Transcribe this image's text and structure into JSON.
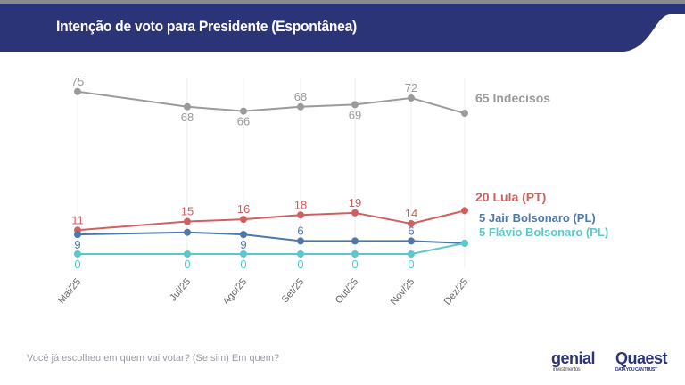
{
  "header": {
    "title": "Intenção de voto para Presidente (Espontânea)"
  },
  "footer": {
    "question": "Você já escolheu em quem vai votar? (Se sim) Em quem?",
    "logo_genial": "genial",
    "logo_genial_sub": "investimentos",
    "logo_quaest": "Quaest",
    "logo_quaest_sub": "DATA YOU CAN TRUST"
  },
  "chart_data": {
    "type": "line",
    "categories": [
      "Mai/25",
      "Jul/25",
      "Ago/25",
      "Set/25",
      "Out/25",
      "Nov/25",
      "Dez/25"
    ],
    "series": [
      {
        "name": "Indecisos",
        "end_label": "65 Indecisos",
        "color": "#9b9b9b",
        "values": [
          75,
          68,
          66,
          68,
          69,
          72,
          65
        ]
      },
      {
        "name": "Lula (PT)",
        "end_label": "20 Lula (PT)",
        "color": "#d06060",
        "values": [
          11,
          15,
          16,
          18,
          19,
          14,
          20
        ]
      },
      {
        "name": "Jair Bolsonaro (PL)",
        "end_label": "5 Jair Bolsonaro (PL)",
        "color": "#4e78a8",
        "values": [
          9,
          10,
          9,
          6,
          6,
          6,
          5
        ]
      },
      {
        "name": "Flávio Bolsonaro (PL)",
        "end_label": "5 Flávio Bolsonaro (PL)",
        "color": "#5cc8cc",
        "values": [
          0,
          0,
          0,
          0,
          0,
          0,
          5
        ]
      }
    ],
    "ylim": [
      0,
      80
    ],
    "grid": "vertical",
    "header_color": "#2b3477"
  }
}
